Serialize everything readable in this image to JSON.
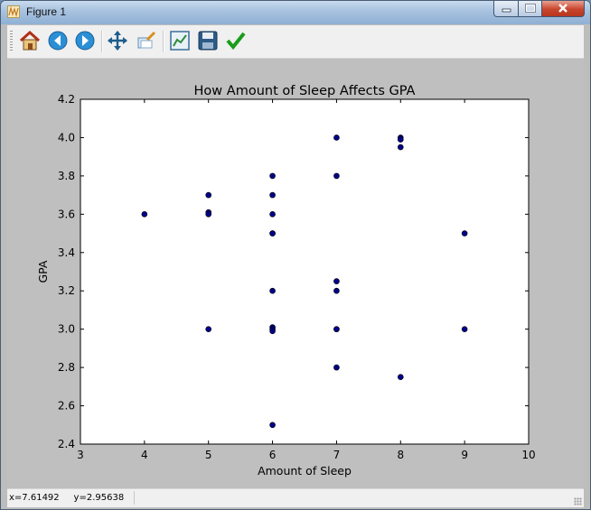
{
  "window": {
    "title": "Figure 1"
  },
  "toolbar": {
    "buttons": [
      {
        "name": "home-button",
        "icon": "home-icon"
      },
      {
        "name": "back-button",
        "icon": "arrow-left-icon"
      },
      {
        "name": "forward-button",
        "icon": "arrow-right-icon"
      },
      {
        "name": "pan-button",
        "icon": "move-arrows-icon"
      },
      {
        "name": "zoom-button",
        "icon": "zoom-rect-icon"
      },
      {
        "name": "subplots-button",
        "icon": "subplots-icon"
      },
      {
        "name": "save-button",
        "icon": "floppy-disk-icon"
      },
      {
        "name": "edit-params-button",
        "icon": "checkmark-icon"
      }
    ]
  },
  "status": {
    "coords": "x=7.61492     y=2.95638"
  },
  "chart_data": {
    "type": "scatter",
    "title": "How Amount of Sleep Affects GPA",
    "xlabel": "Amount of Sleep",
    "ylabel": "GPA",
    "xlim": [
      3,
      10
    ],
    "ylim": [
      2.4,
      4.2
    ],
    "xticks": [
      "3",
      "4",
      "5",
      "6",
      "7",
      "8",
      "9",
      "10"
    ],
    "yticks": [
      "2.4",
      "2.6",
      "2.8",
      "3.0",
      "3.2",
      "3.4",
      "3.6",
      "3.8",
      "4.0",
      "4.2"
    ],
    "grid": false,
    "marker_color": "#00008b",
    "points": [
      [
        4,
        3.6
      ],
      [
        5,
        3.7
      ],
      [
        5,
        3.61
      ],
      [
        5,
        3.6
      ],
      [
        5,
        3.0
      ],
      [
        6,
        3.8
      ],
      [
        6,
        3.7
      ],
      [
        6,
        3.6
      ],
      [
        6,
        3.5
      ],
      [
        6,
        3.5
      ],
      [
        6,
        3.2
      ],
      [
        6,
        3.01
      ],
      [
        6,
        3.0
      ],
      [
        6,
        2.99
      ],
      [
        6,
        2.5
      ],
      [
        7,
        4.0
      ],
      [
        7,
        3.8
      ],
      [
        7,
        3.25
      ],
      [
        7,
        3.2
      ],
      [
        7,
        3.0
      ],
      [
        7,
        3.0
      ],
      [
        7,
        2.8
      ],
      [
        8,
        4.0
      ],
      [
        8,
        3.99
      ],
      [
        8,
        3.95
      ],
      [
        8,
        2.75
      ],
      [
        9,
        3.5
      ],
      [
        9,
        3.0
      ]
    ]
  }
}
